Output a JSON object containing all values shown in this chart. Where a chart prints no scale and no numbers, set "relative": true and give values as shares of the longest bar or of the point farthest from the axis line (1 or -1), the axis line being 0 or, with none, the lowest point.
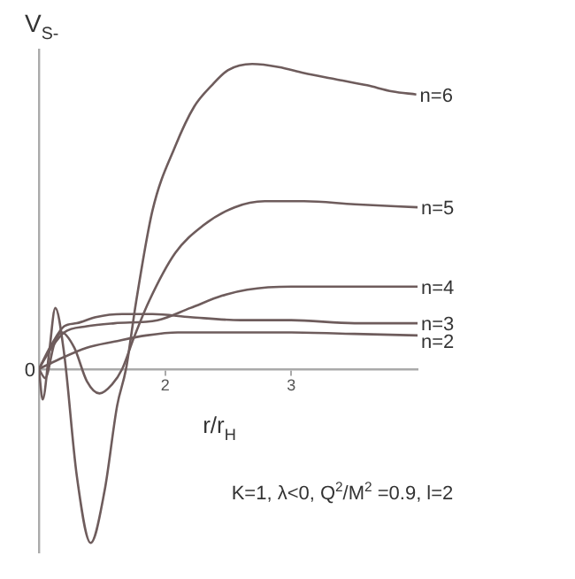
{
  "chart_data": {
    "type": "line",
    "relative": true,
    "xlabel": "r/r$_{H}$",
    "ylabel": "V$_{S-}$",
    "xlim": [
      1,
      4
    ],
    "xticks": [
      2,
      3
    ],
    "annotations": [
      {
        "text": "0",
        "x": 1,
        "y": 0
      },
      "K=1, λ<0, Q$^{2}$/M$^{2}$ =0.9, l=2"
    ],
    "series": [
      {
        "name": "n=6",
        "color": "#6e5c5c",
        "x": [
          1,
          1.03,
          1.08,
          1.13,
          1.2,
          1.3,
          1.41,
          1.52,
          1.62,
          1.69,
          1.77,
          1.9,
          2.08,
          2.23,
          2.37,
          2.5,
          2.69,
          2.9,
          3.1,
          3.35,
          3.6,
          3.8,
          3.99
        ],
        "values": [
          0,
          -0.1,
          0.05,
          0.2,
          0.05,
          -0.35,
          -0.57,
          -0.4,
          -0.12,
          0,
          0.22,
          0.52,
          0.73,
          0.86,
          0.93,
          0.98,
          1,
          0.99,
          0.97,
          0.95,
          0.93,
          0.91,
          0.9
        ]
      },
      {
        "name": "n=5",
        "color": "#6e5c5c",
        "x": [
          1,
          1.05,
          1.12,
          1.18,
          1.28,
          1.38,
          1.48,
          1.58,
          1.66,
          1.75,
          1.87,
          2.08,
          2.3,
          2.55,
          2.79,
          3.1,
          3.5,
          4.0
        ],
        "values": [
          0,
          -0.03,
          0.08,
          0.12,
          0.07,
          -0.04,
          -0.08,
          -0.05,
          0,
          0.1,
          0.22,
          0.38,
          0.47,
          0.53,
          0.55,
          0.55,
          0.54,
          0.53
        ]
      },
      {
        "name": "n=4",
        "color": "#6e5c5c",
        "x": [
          1,
          1.1,
          1.2,
          1.38,
          1.6,
          1.94,
          2.2,
          2.45,
          2.65,
          3.0,
          3.5,
          4.0
        ],
        "values": [
          0,
          0.07,
          0.12,
          0.14,
          0.15,
          0.16,
          0.2,
          0.24,
          0.26,
          0.27,
          0.27,
          0.27
        ]
      },
      {
        "name": "n=3",
        "color": "#6e5c5c",
        "x": [
          1,
          1.1,
          1.2,
          1.3,
          1.45,
          1.66,
          1.9,
          2.2,
          2.6,
          3.0,
          3.5,
          4.0
        ],
        "values": [
          0,
          0.08,
          0.14,
          0.15,
          0.17,
          0.18,
          0.18,
          0.17,
          0.16,
          0.16,
          0.15,
          0.15
        ]
      },
      {
        "name": "n=2",
        "color": "#6e5c5c",
        "x": [
          1,
          1.15,
          1.38,
          1.6,
          1.85,
          2.1,
          2.5,
          3.0,
          3.5,
          4.0
        ],
        "values": [
          0,
          0.03,
          0.07,
          0.09,
          0.11,
          0.12,
          0.12,
          0.12,
          0.115,
          0.11
        ]
      }
    ]
  }
}
